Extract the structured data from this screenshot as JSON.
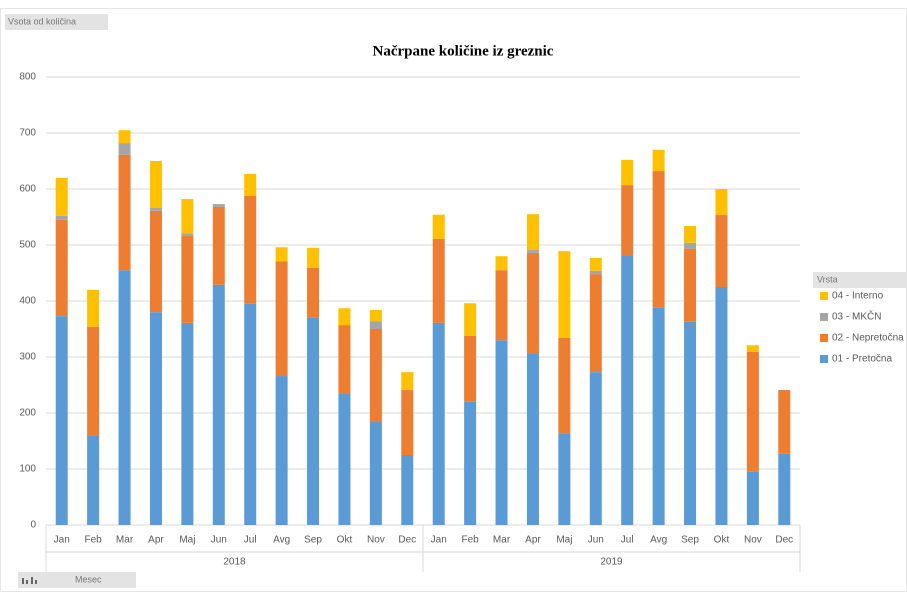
{
  "chart_data": {
    "type": "stacked_bar",
    "title": "Načrpane količine iz greznic",
    "field_buttons": {
      "values": "Vsota od količina",
      "legend": "Vrsta",
      "axis": "Mesec"
    },
    "categories": [
      "Jan",
      "Feb",
      "Mar",
      "Apr",
      "Maj",
      "Jun",
      "Jul",
      "Avg",
      "Sep",
      "Okt",
      "Nov",
      "Dec",
      "Jan",
      "Feb",
      "Mar",
      "Apr",
      "Maj",
      "Jun",
      "Jul",
      "Avg",
      "Sep",
      "Okt",
      "Nov",
      "Dec"
    ],
    "category_groups": [
      "2018",
      "2019"
    ],
    "series": [
      {
        "name": "01 - Pretočna",
        "color": "#5b9bd5",
        "values": [
          373,
          159,
          455,
          380,
          361,
          429,
          395,
          266,
          371,
          234,
          184,
          125,
          361,
          220,
          330,
          307,
          164,
          273,
          482,
          388,
          363,
          425,
          95,
          127
        ]
      },
      {
        "name": "02 - Nepretočna",
        "color": "#ed7d31",
        "values": [
          172,
          195,
          206,
          181,
          155,
          139,
          193,
          205,
          88,
          123,
          166,
          116,
          150,
          118,
          125,
          179,
          170,
          175,
          125,
          244,
          130,
          129,
          214,
          114
        ]
      },
      {
        "name": "03 - MKČN",
        "color": "#a5a5a5",
        "values": [
          7,
          0,
          21,
          5,
          5,
          5,
          0,
          0,
          0,
          0,
          14,
          0,
          0,
          0,
          0,
          5,
          0,
          6,
          0,
          0,
          11,
          0,
          0,
          0
        ]
      },
      {
        "name": "04 - Interno",
        "color": "#ffc000",
        "values": [
          68,
          66,
          23,
          84,
          61,
          0,
          39,
          25,
          36,
          30,
          20,
          32,
          43,
          58,
          25,
          64,
          155,
          23,
          45,
          38,
          30,
          46,
          12,
          0
        ]
      }
    ],
    "ylim": [
      0,
      800
    ],
    "yticks": [
      0,
      100,
      200,
      300,
      400,
      500,
      600,
      700,
      800
    ],
    "grid": true,
    "legend": "right"
  }
}
